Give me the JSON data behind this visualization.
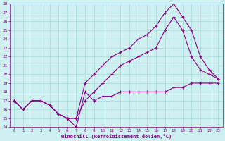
{
  "xlabel": "Windchill (Refroidissement éolien,°C)",
  "bg_color": "#cff0f0",
  "line_color": "#880088",
  "grid_color": "#aadddd",
  "xlim": [
    -0.5,
    23.5
  ],
  "ylim": [
    14,
    28
  ],
  "xticks": [
    0,
    1,
    2,
    3,
    4,
    5,
    6,
    7,
    8,
    9,
    10,
    11,
    12,
    13,
    14,
    15,
    16,
    17,
    18,
    19,
    20,
    21,
    22,
    23
  ],
  "yticks": [
    14,
    15,
    16,
    17,
    18,
    19,
    20,
    21,
    22,
    23,
    24,
    25,
    26,
    27,
    28
  ],
  "line1_x": [
    0,
    1,
    2,
    3,
    4,
    5,
    6,
    7,
    8,
    9,
    10,
    11,
    12,
    13,
    14,
    15,
    16,
    17,
    18,
    19,
    20,
    21,
    22,
    23
  ],
  "line1_y": [
    17,
    16,
    17,
    17,
    16.5,
    15.5,
    15,
    14,
    18,
    17,
    17.5,
    17.5,
    18,
    18,
    18,
    18,
    18,
    18,
    18.5,
    18.5,
    19,
    19,
    19,
    19
  ],
  "line2_x": [
    0,
    1,
    2,
    3,
    4,
    5,
    6,
    7,
    8,
    9,
    10,
    11,
    12,
    13,
    14,
    15,
    16,
    17,
    18,
    19,
    20,
    21,
    22,
    23
  ],
  "line2_y": [
    17,
    16,
    17,
    17,
    16.5,
    15.5,
    15,
    15,
    17,
    18,
    19,
    20,
    21,
    21.5,
    22,
    22.5,
    23,
    25,
    26.5,
    25,
    22,
    20.5,
    20,
    19.5
  ],
  "line3_x": [
    0,
    1,
    2,
    3,
    4,
    5,
    6,
    7,
    8,
    9,
    10,
    11,
    12,
    13,
    14,
    15,
    16,
    17,
    18,
    19,
    20,
    21,
    22,
    23
  ],
  "line3_y": [
    17,
    16,
    17,
    17,
    16.5,
    15.5,
    15,
    15,
    19,
    20,
    21,
    22,
    22.5,
    23,
    24,
    24.5,
    25.5,
    27,
    28,
    26.5,
    25,
    22,
    20.5,
    19.5
  ]
}
